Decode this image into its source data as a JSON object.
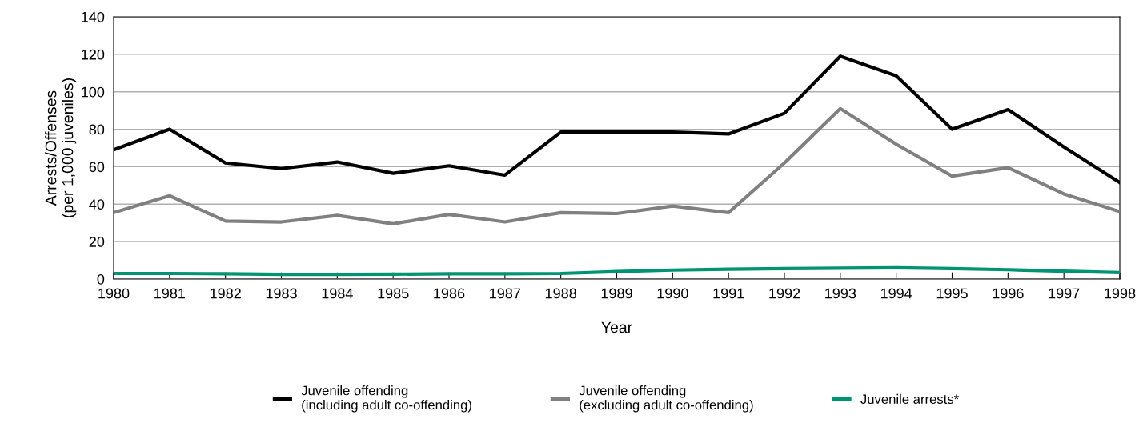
{
  "chart_data": {
    "type": "line",
    "xlabel": "Year",
    "ylabel": "Arrests/Offenses\n(per 1,000 juveniles)",
    "categories": [
      "1980",
      "1981",
      "1982",
      "1983",
      "1984",
      "1985",
      "1986",
      "1987",
      "1988",
      "1989",
      "1990",
      "1991",
      "1992",
      "1993",
      "1994",
      "1995",
      "1996",
      "1997",
      "1998"
    ],
    "series": [
      {
        "name": "Juvenile offending\n(including adult co-offending)",
        "color": "#000000",
        "values": [
          69,
          80,
          62,
          59,
          62.5,
          56.5,
          60.5,
          55.5,
          78.5,
          78.5,
          78.5,
          77.5,
          88.5,
          119,
          108.5,
          80,
          90.5,
          70.5,
          51.5
        ]
      },
      {
        "name": "Juvenile offending\n(excluding adult co-offending)",
        "color": "#808080",
        "values": [
          35.5,
          44.5,
          31,
          30.5,
          34,
          29.5,
          34.5,
          30.5,
          35.5,
          35,
          39,
          35.5,
          62,
          91,
          72,
          55,
          59.5,
          45.5,
          36
        ]
      },
      {
        "name": "Juvenile arrests*",
        "color": "#009473",
        "values": [
          3,
          3,
          2.8,
          2.5,
          2.5,
          2.6,
          2.8,
          2.8,
          3,
          4,
          4.8,
          5.3,
          5.6,
          5.8,
          6,
          5.6,
          5,
          4.2,
          3.5
        ]
      }
    ],
    "ylim": [
      0,
      140
    ],
    "yticks": [
      0,
      20,
      40,
      60,
      80,
      100,
      120,
      140
    ],
    "grid": "y",
    "legend": "bottom",
    "marker": "none",
    "line_style": "solid"
  }
}
